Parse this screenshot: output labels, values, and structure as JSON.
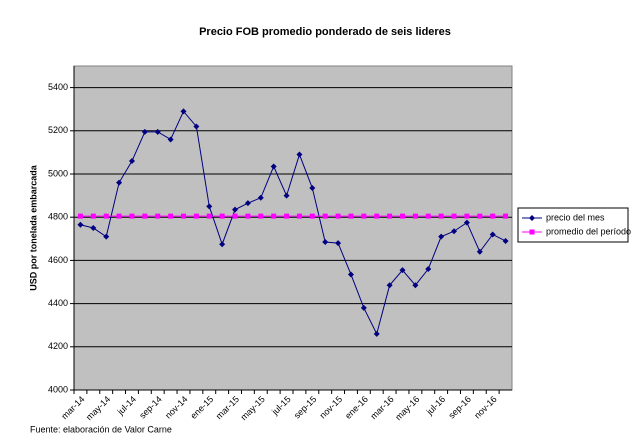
{
  "chart_data": {
    "type": "line",
    "title": "Precio FOB promedio ponderado de seis lideres",
    "y_label": "USD por tonelada embarcada",
    "source": "Fuente: elaboración de Valor Carne",
    "categories": [
      "mar-14",
      null,
      "may-14",
      null,
      "jul-14",
      null,
      "sep-14",
      null,
      "nov-14",
      null,
      "ene-15",
      null,
      "mar-15",
      null,
      "may-15",
      null,
      "jul-15",
      null,
      "sep-15",
      null,
      "nov-15",
      null,
      "ene-16",
      null,
      "mar-16",
      null,
      "may-16",
      null,
      "jul-16",
      null,
      "sep-16",
      null,
      "nov-16",
      null
    ],
    "series": [
      {
        "name": "precio del mes",
        "color": "#000080",
        "marker": "diamond",
        "values": [
          4765,
          4750,
          4710,
          4960,
          5060,
          5195,
          5195,
          5160,
          5290,
          5220,
          4850,
          4675,
          4835,
          4865,
          4890,
          5035,
          4900,
          5090,
          4935,
          4685,
          4680,
          4535,
          4380,
          4260,
          4485,
          4555,
          4485,
          4560,
          4710,
          4735,
          4775,
          4640,
          4720,
          4690
        ]
      },
      {
        "name": "promedio del período",
        "color": "#ff00ff",
        "marker": "square",
        "values": [
          4805,
          4805,
          4805,
          4805,
          4805,
          4805,
          4805,
          4805,
          4805,
          4805,
          4805,
          4805,
          4805,
          4805,
          4805,
          4805,
          4805,
          4805,
          4805,
          4805,
          4805,
          4805,
          4805,
          4805,
          4805,
          4805,
          4805,
          4805,
          4805,
          4805,
          4805,
          4805,
          4805,
          4805
        ]
      }
    ],
    "ylim": [
      4000,
      5500
    ],
    "yticks": [
      4000,
      4200,
      4400,
      4600,
      4800,
      5000,
      5200,
      5400
    ],
    "grid": true,
    "plot_background": "#c0c0c0",
    "legend": "right"
  }
}
